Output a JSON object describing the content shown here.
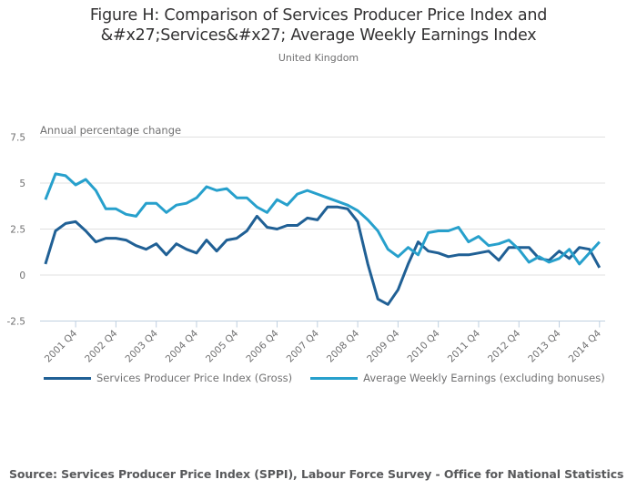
{
  "chart_data": {
    "type": "line",
    "title": "Figure H: Comparison of Services Producer Price Index and &#x27;Services&#x27; Average Weekly Earnings Index",
    "title_lines": [
      "Figure H: Comparison of Services Producer Price Index and",
      "&#x27;Services&#x27; Average Weekly Earnings Index"
    ],
    "subtitle": "United Kingdom",
    "ylabel": "Annual percentage change",
    "xlabel": "",
    "ylim": [
      -2.5,
      7.5
    ],
    "yticks": [
      7.5,
      5,
      2.5,
      0,
      -2.5
    ],
    "ytick_labels": [
      "7.5",
      "5",
      "2.5",
      "0",
      "-2.5"
    ],
    "grid": true,
    "legend_position": "bottom-left",
    "x": [
      "2001 Q1",
      "2001 Q2",
      "2001 Q3",
      "2001 Q4",
      "2002 Q1",
      "2002 Q2",
      "2002 Q3",
      "2002 Q4",
      "2003 Q1",
      "2003 Q2",
      "2003 Q3",
      "2003 Q4",
      "2004 Q1",
      "2004 Q2",
      "2004 Q3",
      "2004 Q4",
      "2005 Q1",
      "2005 Q2",
      "2005 Q3",
      "2005 Q4",
      "2006 Q1",
      "2006 Q2",
      "2006 Q3",
      "2006 Q4",
      "2007 Q1",
      "2007 Q2",
      "2007 Q3",
      "2007 Q4",
      "2008 Q1",
      "2008 Q2",
      "2008 Q3",
      "2008 Q4",
      "2009 Q1",
      "2009 Q2",
      "2009 Q3",
      "2009 Q4",
      "2010 Q1",
      "2010 Q2",
      "2010 Q3",
      "2010 Q4",
      "2011 Q1",
      "2011 Q2",
      "2011 Q3",
      "2011 Q4",
      "2012 Q1",
      "2012 Q2",
      "2012 Q3",
      "2012 Q4",
      "2013 Q1",
      "2013 Q2",
      "2013 Q3",
      "2013 Q4",
      "2014 Q1",
      "2014 Q2",
      "2014 Q3",
      "2014 Q4"
    ],
    "xtick_labels": [
      "2001 Q4",
      "2002 Q4",
      "2003 Q4",
      "2004 Q4",
      "2005 Q4",
      "2006 Q4",
      "2007 Q4",
      "2008 Q4",
      "2009 Q4",
      "2010 Q4",
      "2011 Q4",
      "2012 Q4",
      "2013 Q4",
      "2014 Q4"
    ],
    "series": [
      {
        "name": "Services Producer Price Index (Gross)",
        "color": "#206095",
        "values": [
          0.6,
          2.4,
          2.8,
          2.9,
          2.4,
          1.8,
          2.0,
          2.0,
          1.9,
          1.6,
          1.4,
          1.7,
          1.1,
          1.7,
          1.4,
          1.2,
          1.9,
          1.3,
          1.9,
          2.0,
          2.4,
          3.2,
          2.6,
          2.5,
          2.7,
          2.7,
          3.1,
          3.0,
          3.7,
          3.7,
          3.6,
          2.9,
          0.6,
          -1.3,
          -1.6,
          -0.8,
          0.6,
          1.8,
          1.3,
          1.2,
          1.0,
          1.1,
          1.1,
          1.2,
          1.3,
          0.8,
          1.5,
          1.5,
          1.5,
          0.9,
          0.8,
          1.3,
          0.9,
          1.5,
          1.4,
          0.4
        ]
      },
      {
        "name": "Average Weekly Earnings (excluding bonuses)",
        "color": "#27a0cc",
        "values": [
          4.1,
          5.5,
          5.4,
          4.9,
          5.2,
          4.6,
          3.6,
          3.6,
          3.3,
          3.2,
          3.9,
          3.9,
          3.4,
          3.8,
          3.9,
          4.2,
          4.8,
          4.6,
          4.7,
          4.2,
          4.2,
          3.7,
          3.4,
          4.1,
          3.8,
          4.4,
          4.6,
          4.4,
          4.2,
          4.0,
          3.8,
          3.5,
          3.0,
          2.4,
          1.4,
          1.0,
          1.5,
          1.1,
          2.3,
          2.4,
          2.4,
          2.6,
          1.8,
          2.1,
          1.6,
          1.7,
          1.9,
          1.4,
          0.7,
          1.0,
          0.7,
          0.9,
          1.4,
          0.6,
          1.2,
          1.8
        ]
      }
    ]
  },
  "source": "Source: Services Producer Price Index (SPPI), Labour Force Survey - Office for National Statistics",
  "colors": {
    "grid": "#e0e0e0",
    "axis": "#c0d0e0",
    "text": "#707071"
  }
}
